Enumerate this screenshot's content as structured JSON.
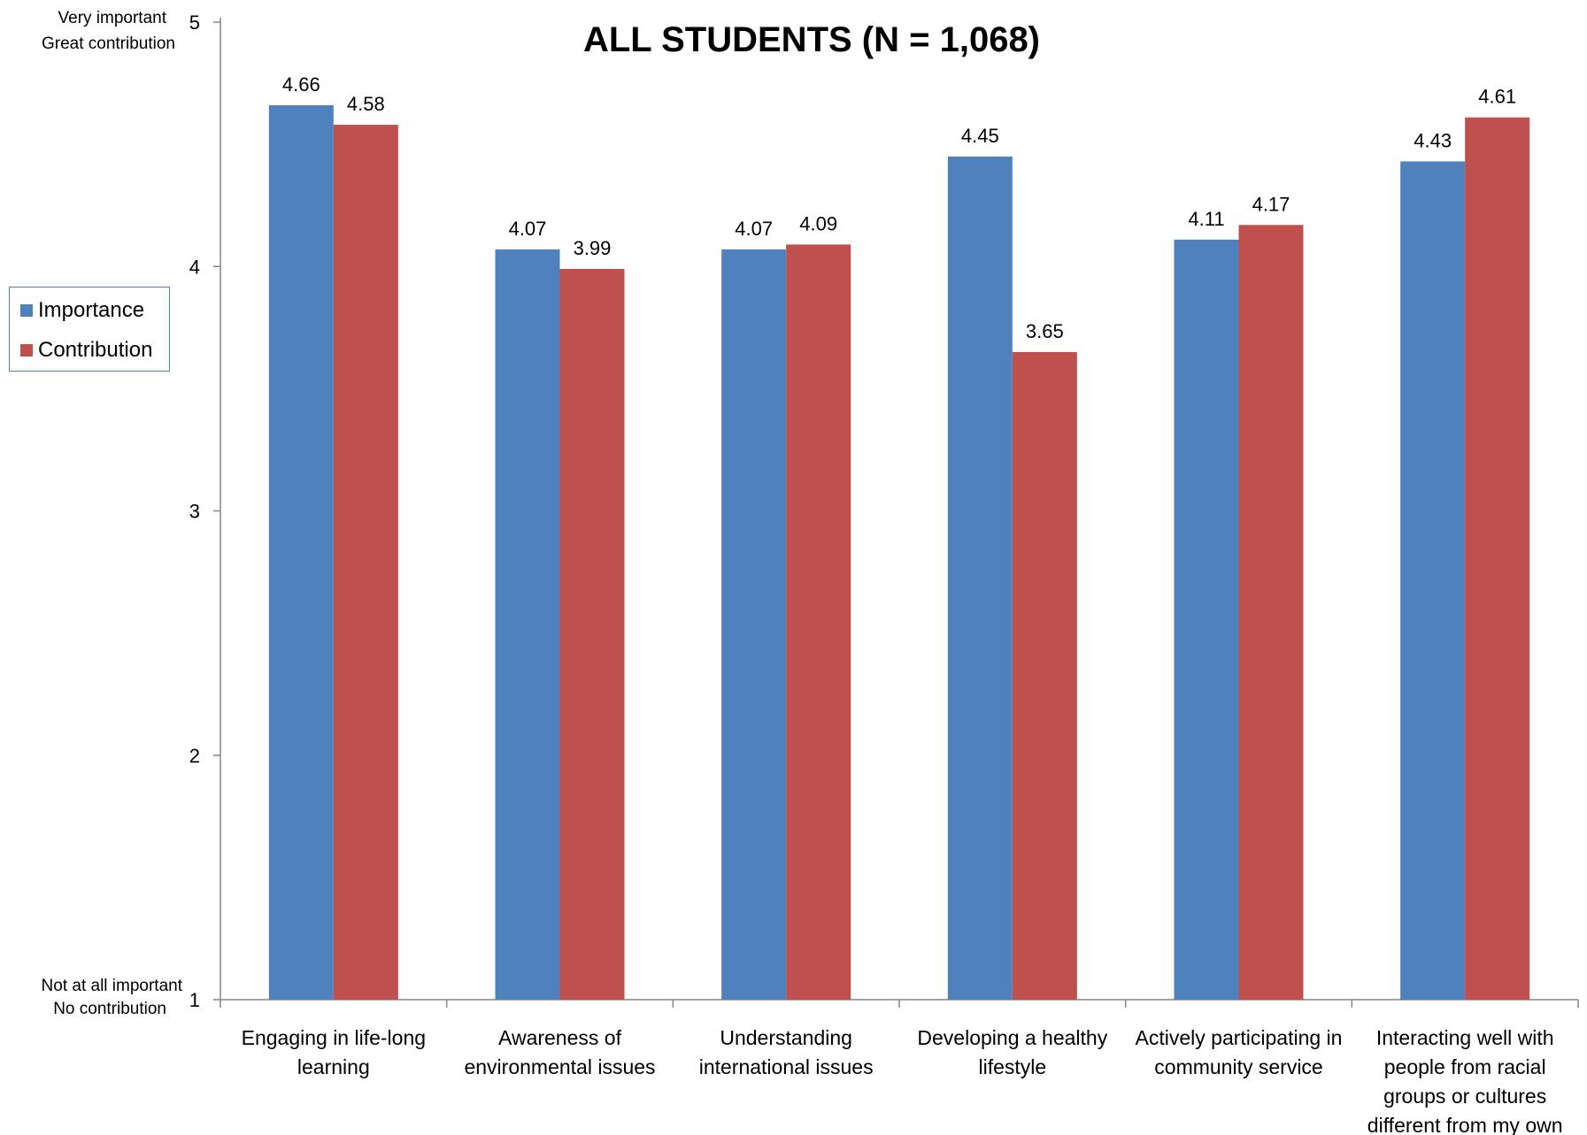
{
  "chart_data": {
    "type": "bar",
    "title": "ALL STUDENTS (N = 1,068)",
    "categories": [
      [
        "Engaging in life-long",
        "learning"
      ],
      [
        "Awareness of",
        "environmental issues"
      ],
      [
        "Understanding",
        "international issues"
      ],
      [
        "Developing a healthy",
        "lifestyle"
      ],
      [
        "Actively participating in",
        "community service"
      ],
      [
        "Interacting well with",
        "people from racial",
        "groups or cultures",
        "different from my own"
      ]
    ],
    "series": [
      {
        "name": "Importance",
        "color": "#4F81BD",
        "values": [
          4.66,
          4.07,
          4.07,
          4.45,
          4.11,
          4.43
        ]
      },
      {
        "name": "Contribution",
        "color": "#C0504D",
        "values": [
          4.58,
          3.99,
          4.09,
          3.65,
          4.17,
          4.61
        ]
      }
    ],
    "data_labels": [
      [
        "4.66",
        "4.07",
        "4.07",
        "4.45",
        "4.11",
        "4.43"
      ],
      [
        "4.58",
        "3.99",
        "4.09",
        "3.65",
        "4.17",
        "4.61"
      ]
    ],
    "ylim": [
      1,
      5
    ],
    "yticks": [
      1,
      2,
      3,
      4,
      5
    ],
    "y_top_annotation": [
      "Very important",
      "Great contribution"
    ],
    "y_bottom_annotation": [
      "Not at all important",
      "No contribution"
    ],
    "grid": false,
    "legend_position": "left"
  }
}
